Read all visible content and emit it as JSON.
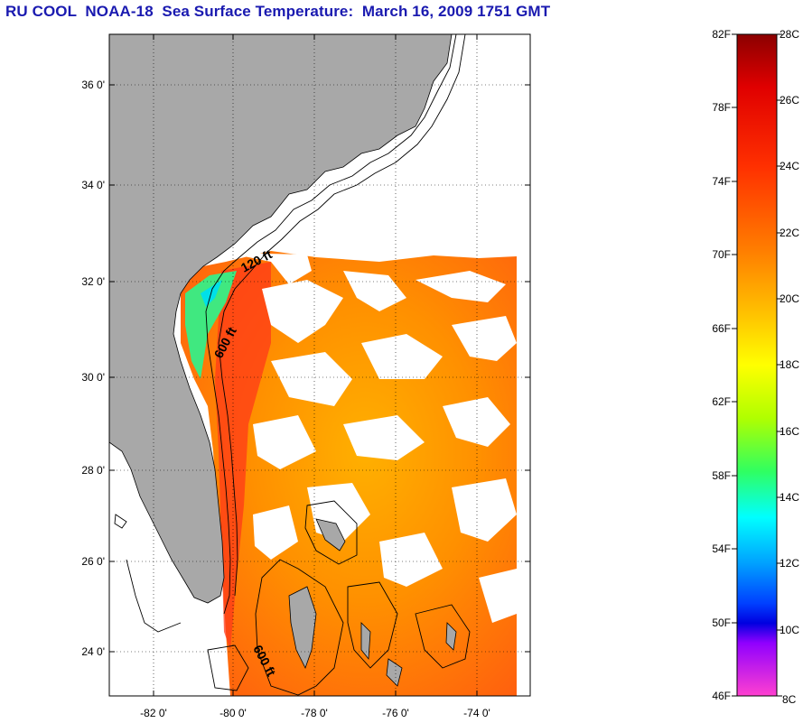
{
  "title": "RU COOL  NOAA-18  Sea Surface Temperature:  March 16, 2009 1751 GMT",
  "map": {
    "lat_ticks": [
      "36 0'",
      "34 0'",
      "32 0'",
      "30 0'",
      "28 0'",
      "26 0'",
      "24 0'"
    ],
    "lon_ticks": [
      "-82 0'",
      "-80 0'",
      "-78 0'",
      "-76 0'",
      "-74 0'"
    ],
    "contour_labels": [
      "120 ft",
      "600 ft",
      "600 ft"
    ],
    "colors": {
      "land": "#a8a8a8",
      "cloud": "#ffffff",
      "frame": "#000000"
    }
  },
  "colorbar": {
    "fahrenheit": [
      "82F",
      "78F",
      "74F",
      "70F",
      "66F",
      "62F",
      "58F",
      "54F",
      "50F",
      "46F"
    ],
    "celsius": [
      "28C",
      "26C",
      "24C",
      "22C",
      "20C",
      "18C",
      "16C",
      "14C",
      "12C",
      "10C",
      "8C"
    ],
    "gradient": [
      "#8b0000",
      "#e00000",
      "#ff3000",
      "#ff8000",
      "#ffc000",
      "#ffff00",
      "#b0ff00",
      "#30ff60",
      "#00ffff",
      "#00a0ff",
      "#0040ff",
      "#0000e0",
      "#9000ff",
      "#ff40d0"
    ]
  }
}
